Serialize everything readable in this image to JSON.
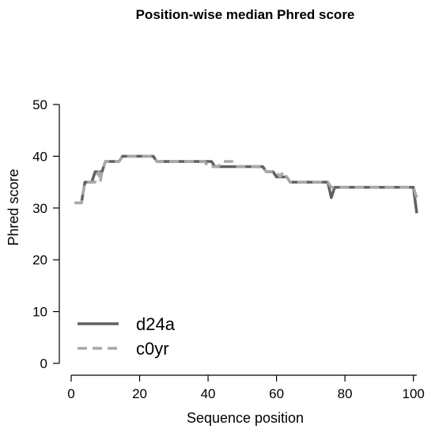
{
  "chart_data": {
    "type": "line",
    "title": "Position-wise median Phred score",
    "xlabel": "Sequence position",
    "ylabel": "Phred score",
    "xlim": [
      0,
      101
    ],
    "ylim": [
      0,
      50
    ],
    "x_ticks": [
      0,
      20,
      40,
      60,
      80,
      100
    ],
    "y_ticks": [
      0,
      10,
      20,
      30,
      40,
      50
    ],
    "grid": false,
    "legend_position": "bottom-left",
    "series": [
      {
        "name": "d24a",
        "color": "#606060",
        "dash": "solid",
        "points": [
          [
            1,
            31
          ],
          [
            3,
            31
          ],
          [
            4,
            35
          ],
          [
            6,
            35
          ],
          [
            7,
            37
          ],
          [
            9,
            37
          ],
          [
            10,
            39
          ],
          [
            14,
            39
          ],
          [
            15,
            40
          ],
          [
            24,
            40
          ],
          [
            25,
            39
          ],
          [
            38,
            39
          ],
          [
            41,
            39
          ],
          [
            42,
            38
          ],
          [
            56,
            38
          ],
          [
            57,
            37
          ],
          [
            59,
            37
          ],
          [
            60,
            36
          ],
          [
            63,
            36
          ],
          [
            64,
            35
          ],
          [
            75,
            35
          ],
          [
            76,
            32
          ],
          [
            77,
            34
          ],
          [
            100,
            34
          ],
          [
            101,
            29
          ]
        ]
      },
      {
        "name": "c0yr",
        "color": "#a8a8a8",
        "dash": "dashed",
        "points": [
          [
            1,
            31
          ],
          [
            3,
            31
          ],
          [
            4,
            35
          ],
          [
            7,
            35
          ],
          [
            8,
            37
          ],
          [
            8.5,
            35
          ],
          [
            9,
            37
          ],
          [
            10,
            39
          ],
          [
            14,
            39
          ],
          [
            15,
            40
          ],
          [
            24,
            40
          ],
          [
            25,
            39
          ],
          [
            39,
            39
          ],
          [
            40,
            38
          ],
          [
            43,
            38
          ],
          [
            44,
            39
          ],
          [
            47,
            39
          ],
          [
            48,
            38
          ],
          [
            56,
            38
          ],
          [
            57,
            37
          ],
          [
            60,
            37
          ],
          [
            61,
            36
          ],
          [
            62,
            37
          ],
          [
            63,
            36
          ],
          [
            64,
            35
          ],
          [
            75,
            35
          ],
          [
            76,
            34
          ],
          [
            77,
            34
          ],
          [
            100,
            34
          ],
          [
            101,
            32
          ]
        ]
      }
    ]
  }
}
